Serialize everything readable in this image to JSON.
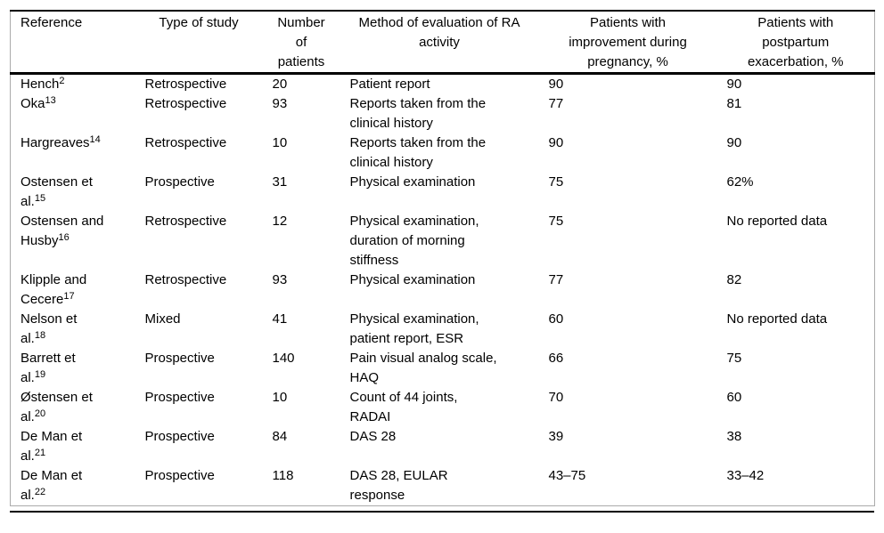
{
  "table": {
    "columns": [
      {
        "key": "reference",
        "label": "Reference"
      },
      {
        "key": "type",
        "label": "Type of study"
      },
      {
        "key": "n",
        "label": "Number\nof\npatients"
      },
      {
        "key": "method",
        "label": "Method of evaluation of RA\nactivity"
      },
      {
        "key": "improvement",
        "label": "Patients with\nimprovement during\npregnancy, %"
      },
      {
        "key": "exacerbation",
        "label": "Patients with\npostpartum\nexacerbation, %"
      }
    ],
    "rows": [
      {
        "reference": {
          "text": "Hench",
          "sup": "2"
        },
        "type": "Retrospective",
        "n": "20",
        "method": "Patient report",
        "improvement": "90",
        "exacerbation": "90"
      },
      {
        "reference": {
          "text": "Oka",
          "sup": "13"
        },
        "type": "Retrospective",
        "n": "93",
        "method": "Reports taken from the\nclinical history",
        "improvement": "77",
        "exacerbation": "81"
      },
      {
        "reference": {
          "text": "Hargreaves",
          "sup": "14"
        },
        "type": "Retrospective",
        "n": "10",
        "method": "Reports taken from the\nclinical history",
        "improvement": "90",
        "exacerbation": "90"
      },
      {
        "reference": {
          "text": "Ostensen et\nal.",
          "sup": "15"
        },
        "type": "Prospective",
        "n": "31",
        "method": "Physical examination",
        "improvement": "75",
        "exacerbation": "62%"
      },
      {
        "reference": {
          "text": "Ostensen and\nHusby",
          "sup": "16"
        },
        "type": "Retrospective",
        "n": "12",
        "method": "Physical examination,\nduration of morning\nstiffness",
        "improvement": "75",
        "exacerbation": "No reported data"
      },
      {
        "reference": {
          "text": "Klipple and\nCecere",
          "sup": "17"
        },
        "type": "Retrospective",
        "n": "93",
        "method": "Physical examination",
        "improvement": "77",
        "exacerbation": "82"
      },
      {
        "reference": {
          "text": "Nelson et\nal.",
          "sup": "18"
        },
        "type": "Mixed",
        "n": "41",
        "method": "Physical examination,\npatient report, ESR",
        "improvement": "60",
        "exacerbation": "No reported data"
      },
      {
        "reference": {
          "text": "Barrett et\nal.",
          "sup": "19"
        },
        "type": "Prospective",
        "n": "140",
        "method": "Pain visual analog scale,\nHAQ",
        "improvement": "66",
        "exacerbation": "75"
      },
      {
        "reference": {
          "text": "Østensen et\nal.",
          "sup": "20"
        },
        "type": "Prospective",
        "n": "10",
        "method": "Count of 44 joints,\nRADAI",
        "improvement": "70",
        "exacerbation": "60"
      },
      {
        "reference": {
          "text": "De Man et\nal.",
          "sup": "21"
        },
        "type": "Prospective",
        "n": "84",
        "method": "DAS 28",
        "improvement": "39",
        "exacerbation": "38"
      },
      {
        "reference": {
          "text": "De Man et\nal.",
          "sup": "22"
        },
        "type": "Prospective",
        "n": "118",
        "method": "DAS 28, EULAR\nresponse",
        "improvement": "43–75",
        "exacerbation": "33–42"
      }
    ]
  },
  "colors": {
    "rule": "#000000",
    "frame": "#ababab",
    "text": "#000000",
    "background": "#ffffff"
  }
}
